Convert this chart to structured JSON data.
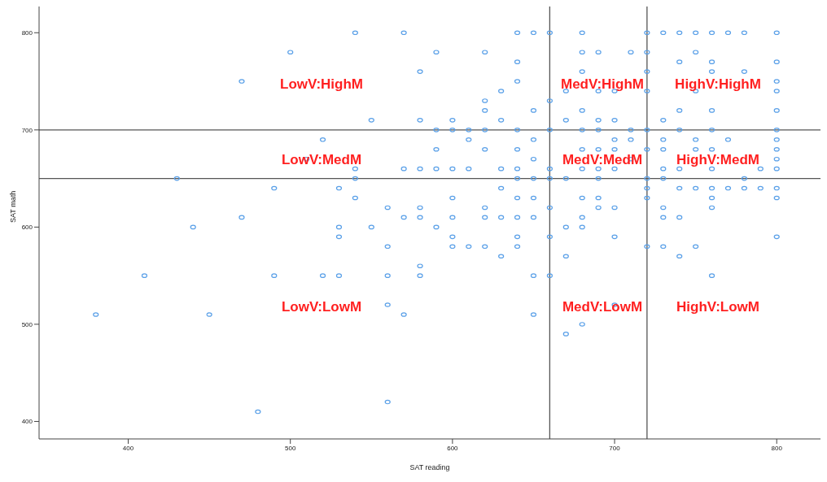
{
  "chart_data": {
    "type": "scatter",
    "xlabel": "SAT reading",
    "ylabel": "SAT math",
    "xlim": [
      345,
      827
    ],
    "ylim": [
      382,
      827
    ],
    "xticks": [
      400,
      500,
      600,
      700,
      800
    ],
    "yticks": [
      400,
      500,
      600,
      700,
      800
    ],
    "grid": false,
    "legend": false,
    "marker": "circle",
    "series": [
      {
        "color": "#5aa0e8",
        "x": [
          380,
          410,
          430,
          440,
          450,
          470,
          470,
          480,
          490,
          490,
          500,
          510,
          520,
          520,
          530,
          530,
          530,
          530,
          540,
          540,
          540,
          540,
          550,
          550,
          560,
          560,
          560,
          560,
          560,
          570,
          570,
          570,
          570,
          580,
          580,
          580,
          580,
          580,
          580,
          580,
          590,
          590,
          590,
          590,
          590,
          600,
          600,
          600,
          600,
          600,
          600,
          600,
          610,
          610,
          610,
          610,
          620,
          620,
          620,
          620,
          620,
          620,
          620,
          620,
          630,
          630,
          630,
          630,
          630,
          630,
          640,
          640,
          640,
          640,
          640,
          640,
          640,
          640,
          640,
          640,
          640,
          650,
          650,
          650,
          650,
          650,
          650,
          650,
          650,
          650,
          660,
          660,
          660,
          660,
          660,
          660,
          660,
          660,
          670,
          670,
          670,
          670,
          670,
          670,
          680,
          680,
          680,
          680,
          680,
          680,
          680,
          680,
          680,
          680,
          680,
          690,
          690,
          690,
          690,
          690,
          690,
          690,
          690,
          690,
          700,
          700,
          700,
          700,
          700,
          700,
          700,
          700,
          710,
          710,
          710,
          710,
          720,
          720,
          720,
          720,
          720,
          720,
          720,
          720,
          720,
          720,
          730,
          730,
          730,
          730,
          730,
          730,
          730,
          730,
          730,
          740,
          740,
          740,
          740,
          740,
          740,
          740,
          740,
          750,
          750,
          750,
          750,
          750,
          750,
          750,
          760,
          760,
          760,
          760,
          760,
          760,
          760,
          760,
          760,
          760,
          760,
          770,
          770,
          770,
          780,
          780,
          780,
          780,
          790,
          790,
          800,
          800,
          800,
          800,
          800,
          800,
          800,
          800,
          800,
          800,
          800,
          800,
          800
        ],
        "values": [
          510,
          550,
          650,
          600,
          510,
          750,
          610,
          410,
          640,
          550,
          780,
          670,
          690,
          550,
          640,
          600,
          590,
          550,
          800,
          660,
          650,
          630,
          710,
          600,
          620,
          580,
          550,
          520,
          420,
          800,
          660,
          610,
          510,
          760,
          710,
          660,
          620,
          610,
          560,
          550,
          780,
          700,
          680,
          660,
          600,
          710,
          700,
          660,
          630,
          610,
          590,
          580,
          700,
          690,
          660,
          580,
          780,
          730,
          720,
          700,
          680,
          620,
          610,
          580,
          740,
          710,
          660,
          640,
          610,
          570,
          800,
          770,
          750,
          700,
          680,
          660,
          650,
          630,
          610,
          590,
          580,
          800,
          720,
          690,
          670,
          650,
          630,
          610,
          550,
          510,
          800,
          730,
          700,
          660,
          650,
          620,
          590,
          550,
          740,
          710,
          650,
          600,
          570,
          490,
          800,
          780,
          760,
          720,
          700,
          680,
          660,
          630,
          610,
          600,
          500,
          780,
          740,
          710,
          700,
          680,
          660,
          650,
          630,
          620,
          740,
          710,
          690,
          680,
          660,
          620,
          590,
          520,
          780,
          700,
          690,
          670,
          800,
          780,
          760,
          740,
          700,
          680,
          650,
          640,
          630,
          580,
          800,
          710,
          690,
          680,
          660,
          650,
          620,
          610,
          580,
          800,
          770,
          720,
          700,
          660,
          640,
          610,
          570,
          800,
          780,
          740,
          690,
          680,
          640,
          580,
          800,
          770,
          760,
          720,
          700,
          680,
          660,
          640,
          630,
          620,
          550,
          800,
          690,
          640,
          800,
          760,
          650,
          640,
          660,
          640,
          800,
          770,
          750,
          740,
          720,
          700,
          690,
          680,
          670,
          660,
          640,
          630,
          590
        ]
      }
    ],
    "ref_lines": [
      {
        "axis": "x",
        "value": 660,
        "color": "#555555"
      },
      {
        "axis": "x",
        "value": 720,
        "color": "#555555"
      },
      {
        "axis": "y",
        "value": 650,
        "color": "#555555"
      },
      {
        "axis": "y",
        "value": 700,
        "color": "#555555"
      }
    ],
    "annotations": [
      "LowV:HighM",
      "LowV:MedM",
      "LowV:LowM",
      "MedV:HighM",
      "MedV:MedM",
      "MedV:LowM",
      "HighV:HighM",
      "HighV:MedM",
      "HighV:LowM"
    ]
  }
}
